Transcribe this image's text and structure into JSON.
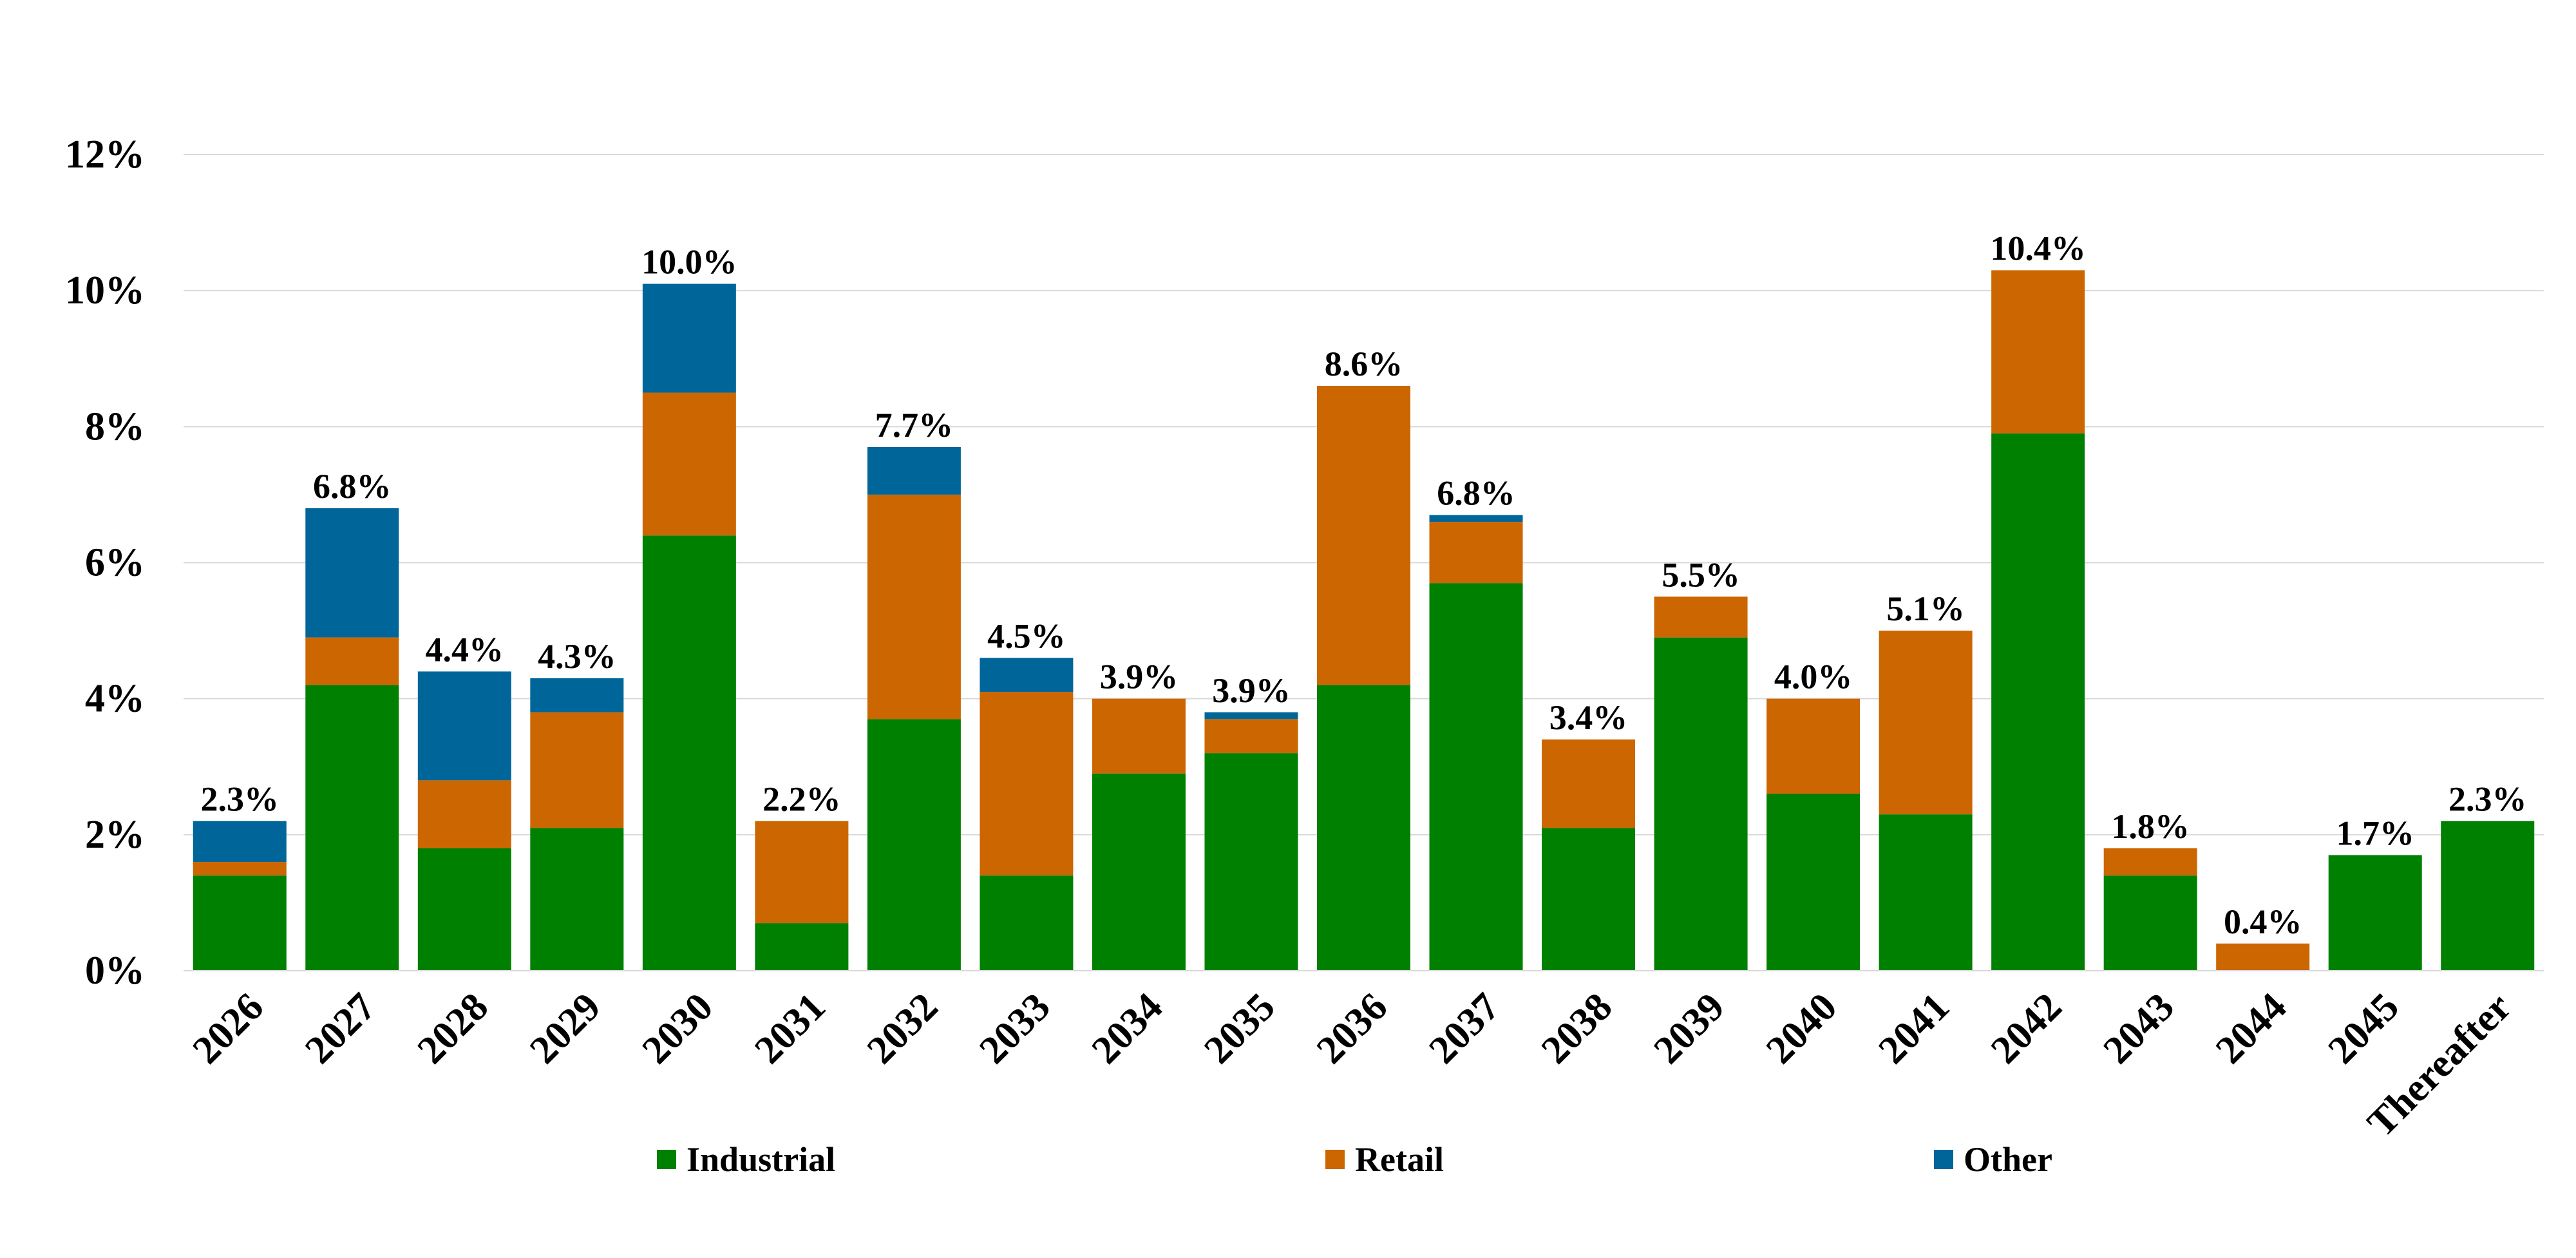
{
  "chart_data": {
    "type": "bar",
    "stacked": true,
    "categories": [
      "2026",
      "2027",
      "2028",
      "2029",
      "2030",
      "2031",
      "2032",
      "2033",
      "2034",
      "2035",
      "2036",
      "2037",
      "2038",
      "2039",
      "2040",
      "2041",
      "2042",
      "2043",
      "2044",
      "2045",
      "Thereafter"
    ],
    "series": [
      {
        "name": "Industrial",
        "color": "#008000",
        "values": [
          1.4,
          4.2,
          1.8,
          2.1,
          6.4,
          0.7,
          3.7,
          1.4,
          2.9,
          3.2,
          4.2,
          5.7,
          2.1,
          4.9,
          2.6,
          2.3,
          7.9,
          1.4,
          0.0,
          1.7,
          2.2
        ]
      },
      {
        "name": "Retail",
        "color": "#CC6600",
        "values": [
          0.2,
          0.7,
          1.0,
          1.7,
          2.1,
          1.5,
          3.3,
          2.7,
          1.1,
          0.5,
          4.4,
          0.9,
          1.3,
          0.6,
          1.4,
          2.7,
          2.4,
          0.4,
          0.4,
          0.0,
          0.0
        ]
      },
      {
        "name": "Other",
        "color": "#006699",
        "values": [
          0.6,
          1.9,
          1.6,
          0.5,
          1.6,
          0.0,
          0.7,
          0.5,
          0.0,
          0.1,
          0.0,
          0.1,
          0.0,
          0.0,
          0.0,
          0.0,
          0.0,
          0.0,
          0.0,
          0.0,
          0.0
        ]
      }
    ],
    "totals_labels": [
      "2.3%",
      "6.8%",
      "4.4%",
      "4.3%",
      "10.0%",
      "2.2%",
      "7.7%",
      "4.5%",
      "3.9%",
      "3.9%",
      "8.6%",
      "6.8%",
      "3.4%",
      "5.5%",
      "4.0%",
      "5.1%",
      "10.4%",
      "1.8%",
      "0.4%",
      "1.7%",
      "2.3%"
    ],
    "y_ticks": [
      "0%",
      "2%",
      "4%",
      "6%",
      "8%",
      "10%",
      "12%"
    ],
    "ylim": [
      0,
      12
    ],
    "grid": true,
    "legend_position": "bottom",
    "title": "",
    "xlabel": "",
    "ylabel": ""
  }
}
